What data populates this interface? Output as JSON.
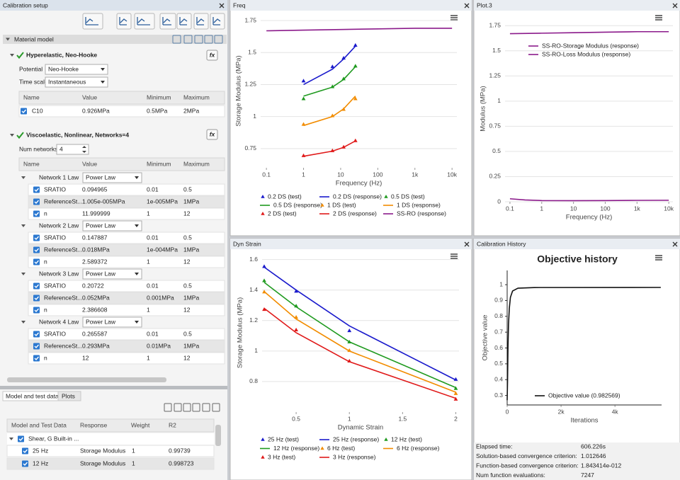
{
  "setup": {
    "title": "Calibration setup",
    "section": "Material model",
    "hyper": {
      "title": "Hyperelastic, Neo-Hooke",
      "fx": "fx",
      "potential_label": "Potential",
      "potential": "Neo-Hooke",
      "timescale_label": "Time scale",
      "timescale": "Instantaneous",
      "columns": [
        "Name",
        "Value",
        "Minimum",
        "Maximum"
      ],
      "rows": [
        [
          "C10",
          "0.926MPa",
          "0.5MPa",
          "2MPa"
        ]
      ]
    },
    "visco": {
      "title": "Viscoelastic, Nonlinear, Networks=4",
      "fx": "fx",
      "num_label": "Num networks",
      "num": "4",
      "columns": [
        "Name",
        "Value",
        "Minimum",
        "Maximum"
      ],
      "networks": [
        {
          "label": "Network 1 Law",
          "law": "Power Law",
          "rows": [
            [
              "SRATIO",
              "0.094965",
              "0.01",
              "0.5"
            ],
            [
              "ReferenceSt...",
              "1.005e-005MPa",
              "1e-005MPa",
              "1MPa"
            ],
            [
              "n",
              "11.999999",
              "1",
              "12"
            ]
          ]
        },
        {
          "label": "Network 2 Law",
          "law": "Power Law",
          "rows": [
            [
              "SRATIO",
              "0.147887",
              "0.01",
              "0.5"
            ],
            [
              "ReferenceSt...",
              "0.018MPa",
              "1e-004MPa",
              "1MPa"
            ],
            [
              "n",
              "2.589372",
              "1",
              "12"
            ]
          ]
        },
        {
          "label": "Network 3 Law",
          "law": "Power Law",
          "rows": [
            [
              "SRATIO",
              "0.20722",
              "0.01",
              "0.5"
            ],
            [
              "ReferenceSt...",
              "0.052MPa",
              "0.001MPa",
              "1MPa"
            ],
            [
              "n",
              "2.386608",
              "1",
              "12"
            ]
          ]
        },
        {
          "label": "Network 4 Law",
          "law": "Power Law",
          "rows": [
            [
              "SRATIO",
              "0.265587",
              "0.01",
              "0.5"
            ],
            [
              "ReferenceSt...",
              "0.293MPa",
              "0.01MPa",
              "1MPa"
            ],
            [
              "n",
              "12",
              "1",
              "12"
            ]
          ]
        }
      ]
    }
  },
  "data_panel": {
    "tabs": [
      "Model and test data",
      "Plots"
    ],
    "columns": [
      "Model and Test Data",
      "Response",
      "Weight",
      "R2"
    ],
    "group": "Shear, G Built-in ...",
    "rows": [
      [
        "25 Hz",
        "Storage Modulus",
        "1",
        "0.99739"
      ],
      [
        "12 Hz",
        "Storage Modulus",
        "1",
        "0.998723"
      ]
    ]
  },
  "panels": [
    {
      "title": "Freq"
    },
    {
      "title": "Plot.3"
    },
    {
      "title": "Dyn Strain"
    },
    {
      "title": "Calibration History"
    }
  ],
  "chart_data": [
    {
      "type": "line",
      "xlabel": "Frequency (Hz)",
      "ylabel": "Storage Modulus (MPa)",
      "xscale": "log",
      "xlim": [
        0.07,
        13500
      ],
      "xticks": [
        0.1,
        1,
        10,
        100,
        {
          "value": 1000,
          "label": "1k"
        },
        {
          "value": 10000,
          "label": "10k"
        }
      ],
      "ylim": [
        0.6,
        1.8
      ],
      "yticks": [
        0.75,
        1,
        1.25,
        1.5,
        1.75
      ],
      "grid": true,
      "legend": "bottom",
      "series": [
        {
          "name": "0.2 DS (test)",
          "color": "#1a1acc",
          "mode": "markers",
          "x": [
            1,
            6,
            12,
            25
          ],
          "values": [
            1.278,
            1.389,
            1.456,
            1.556
          ]
        },
        {
          "name": "0.2 DS (response)",
          "color": "#1a1acc",
          "mode": "lines",
          "x": [
            1,
            6,
            12,
            25
          ],
          "values": [
            1.25,
            1.37,
            1.45,
            1.55
          ]
        },
        {
          "name": "0.5 DS (test)",
          "color": "#1f9a1f",
          "mode": "markers",
          "x": [
            1,
            6,
            12,
            25
          ],
          "values": [
            1.139,
            1.233,
            1.294,
            1.394
          ]
        },
        {
          "name": "0.5 DS (response)",
          "color": "#1f9a1f",
          "mode": "lines",
          "x": [
            1,
            6,
            12,
            25
          ],
          "values": [
            1.16,
            1.23,
            1.29,
            1.39
          ]
        },
        {
          "name": "1 DS (test)",
          "color": "#f28c00",
          "mode": "markers",
          "x": [
            1,
            6,
            12,
            25
          ],
          "values": [
            0.939,
            1.006,
            1.056,
            1.139
          ]
        },
        {
          "name": "1 DS (response)",
          "color": "#f28c00",
          "mode": "lines",
          "x": [
            1,
            6,
            12,
            25
          ],
          "values": [
            0.93,
            1.0,
            1.06,
            1.16
          ]
        },
        {
          "name": "2 DS (test)",
          "color": "#e01a1a",
          "mode": "markers",
          "x": [
            1,
            6,
            12,
            25
          ],
          "values": [
            0.694,
            0.733,
            0.761,
            0.811
          ]
        },
        {
          "name": "2 DS (response)",
          "color": "#e01a1a",
          "mode": "lines",
          "x": [
            1,
            6,
            12,
            25
          ],
          "values": [
            0.69,
            0.73,
            0.76,
            0.81
          ]
        },
        {
          "name": "SS-RO (response)",
          "color": "#8b1a8b",
          "mode": "lines",
          "x": [
            0.1,
            1,
            10,
            100,
            1000,
            10000
          ],
          "values": [
            1.67,
            1.675,
            1.68,
            1.685,
            1.69,
            1.69
          ]
        }
      ]
    },
    {
      "type": "line",
      "xlabel": "Frequency (Hz)",
      "ylabel": "Modulus (MPa)",
      "xscale": "log",
      "xlim": [
        0.07,
        13500
      ],
      "xticks": [
        0.1,
        1,
        10,
        100,
        {
          "value": 1000,
          "label": "1k"
        },
        {
          "value": 10000,
          "label": "10k"
        }
      ],
      "ylim": [
        0,
        1.85
      ],
      "yticks": [
        0,
        0.25,
        0.5,
        0.75,
        1,
        1.25,
        1.5,
        1.75
      ],
      "grid": true,
      "legend": "upper left",
      "series": [
        {
          "name": "SS-RO-Storage Modulus (response)",
          "color": "#8b1a8b",
          "mode": "lines",
          "x": [
            0.1,
            1,
            10,
            100,
            1000,
            10000
          ],
          "values": [
            1.67,
            1.675,
            1.68,
            1.685,
            1.69,
            1.69
          ]
        },
        {
          "name": "SS-RO-Loss Modulus (response)",
          "color": "#8b1a8b",
          "mode": "lines",
          "x": [
            0.1,
            0.3,
            1,
            10,
            100,
            1000,
            10000
          ],
          "values": [
            0.03,
            0.018,
            0.012,
            0.011,
            0.012,
            0.014,
            0.015
          ]
        }
      ]
    },
    {
      "type": "line",
      "xlabel": "Dynamic Strain",
      "ylabel": "Storage Modulus (MPa)",
      "xlim": [
        0.18,
        2.03
      ],
      "xticks": [
        0.5,
        1,
        1.5,
        2
      ],
      "ylim": [
        0.6,
        1.64
      ],
      "yticks": [
        0.8,
        1,
        1.2,
        1.4,
        1.6
      ],
      "grid": true,
      "legend": "bottom",
      "series": [
        {
          "name": "25 Hz (test)",
          "color": "#1a1acc",
          "mode": "markers",
          "x": [
            0.2,
            0.5,
            1,
            2
          ],
          "values": [
            1.554,
            1.392,
            1.133,
            0.814
          ]
        },
        {
          "name": "25 Hz (response)",
          "color": "#1a1acc",
          "mode": "lines",
          "x": [
            0.2,
            0.5,
            1,
            2
          ],
          "values": [
            1.55,
            1.4,
            1.165,
            0.81
          ]
        },
        {
          "name": "12 Hz (test)",
          "color": "#1f9a1f",
          "mode": "markers",
          "x": [
            0.2,
            0.5,
            1,
            2
          ],
          "values": [
            1.461,
            1.295,
            1.059,
            0.754
          ]
        },
        {
          "name": "12 Hz (response)",
          "color": "#1f9a1f",
          "mode": "lines",
          "x": [
            0.2,
            0.5,
            1,
            2
          ],
          "values": [
            1.45,
            1.29,
            1.06,
            0.76
          ]
        },
        {
          "name": "6 Hz (test)",
          "color": "#f28c00",
          "mode": "markers",
          "x": [
            0.2,
            0.5,
            1,
            2
          ],
          "values": [
            1.387,
            1.221,
            1.003,
            0.721
          ]
        },
        {
          "name": "6 Hz (response)",
          "color": "#f28c00",
          "mode": "lines",
          "x": [
            0.2,
            0.5,
            1,
            2
          ],
          "values": [
            1.39,
            1.21,
            1.0,
            0.73
          ]
        },
        {
          "name": "3 Hz (test)",
          "color": "#e01a1a",
          "mode": "markers",
          "x": [
            0.2,
            0.5,
            1,
            2
          ],
          "values": [
            1.272,
            1.138,
            0.934,
            0.684
          ]
        },
        {
          "name": "3 Hz (response)",
          "color": "#e01a1a",
          "mode": "lines",
          "x": [
            0.2,
            0.5,
            1,
            2
          ],
          "values": [
            1.28,
            1.12,
            0.93,
            0.69
          ]
        }
      ]
    },
    {
      "type": "line",
      "title": "Objective history",
      "xlabel": "Iterations",
      "ylabel": "Objective value",
      "xlim": [
        0,
        5730
      ],
      "xticks": [
        0,
        {
          "value": 2000,
          "label": "2k"
        },
        {
          "value": 4000,
          "label": "4k"
        }
      ],
      "ylim": [
        0.24,
        1.09
      ],
      "yticks": [
        0.3,
        0.4,
        0.5,
        0.6,
        0.7,
        0.8,
        0.9,
        1
      ],
      "grid": false,
      "frame": true,
      "legend": "lower center",
      "series": [
        {
          "name": "Objective value (0.982569)",
          "color": "#111111",
          "mode": "lines",
          "x": [
            0,
            15,
            30,
            50,
            80,
            120,
            200,
            400,
            1000,
            5700
          ],
          "values": [
            0.27,
            0.4,
            0.6,
            0.75,
            0.85,
            0.92,
            0.96,
            0.978,
            0.982,
            0.982569
          ]
        }
      ]
    }
  ],
  "history_stats": [
    {
      "label": "Elapsed time:",
      "value": "606.226s"
    },
    {
      "label": "Solution-based convergence criterion:",
      "value": "1.012646"
    },
    {
      "label": "Function-based convergence criterion:",
      "value": "1.843414e-012"
    },
    {
      "label": "Num function evaluations:",
      "value": "7247"
    }
  ]
}
